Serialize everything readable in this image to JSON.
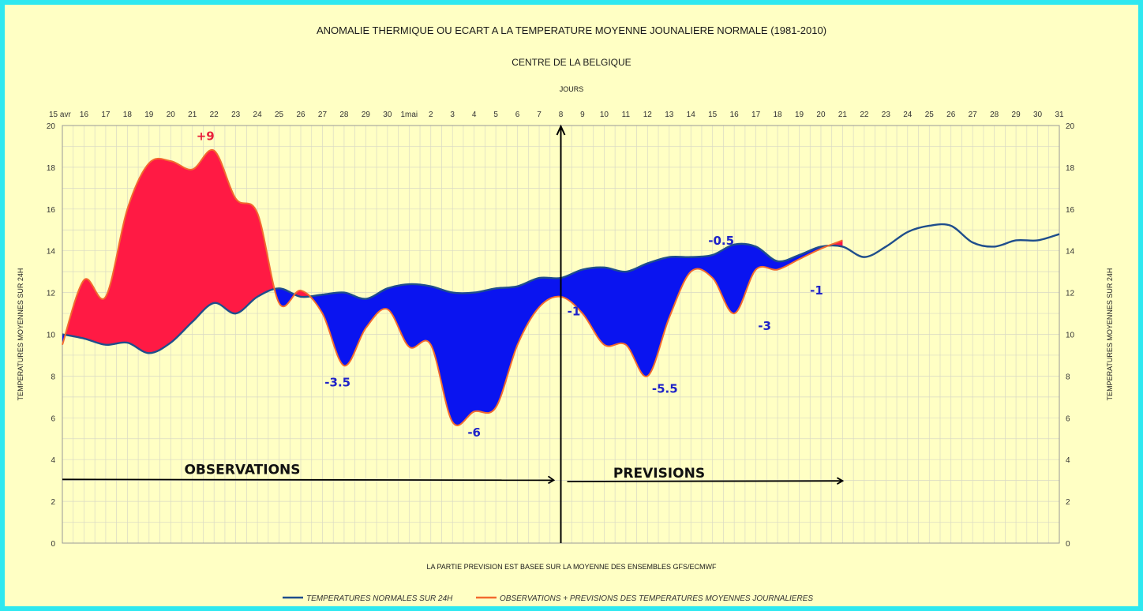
{
  "chart_data": {
    "type": "area",
    "title": "ANOMALIE THERMIQUE OU ECART A LA TEMPERATURE MOYENNE JOUNALIERE NORMALE (1981-2010)",
    "subtitle": "CENTRE DE LA BELGIQUE",
    "xlabel": "JOURS",
    "ylabel_left": "TEMPERATURES MOYENNES SUR 24H",
    "ylabel_right": "TEMPERATURES MOYENNES SUR 24H",
    "footnote": "LA PARTIE PREVISION EST BASEE SUR LA MOYENNE DES ENSEMBLES GFS/ECMWF",
    "ylim": [
      0,
      20
    ],
    "y_ticks": [
      "0",
      "2",
      "4",
      "6",
      "8",
      "10",
      "12",
      "14",
      "16",
      "18",
      "20"
    ],
    "x_ticks": [
      "15 avr",
      "16",
      "17",
      "18",
      "19",
      "20",
      "21",
      "22",
      "23",
      "24",
      "25",
      "26",
      "27",
      "28",
      "29",
      "30",
      "1mai",
      "2",
      "3",
      "4",
      "5",
      "6",
      "7",
      "8",
      "9",
      "10",
      "11",
      "12",
      "13",
      "14",
      "15",
      "16",
      "17",
      "18",
      "19",
      "20",
      "21",
      "22",
      "23",
      "24",
      "25",
      "26",
      "27",
      "28",
      "29",
      "30",
      "31"
    ],
    "grid": true,
    "legend_position": "bottom",
    "colors": {
      "normal_line": "#1f4e8c",
      "observed_line": "#f26a2e",
      "positive_fill": "#ff1a44",
      "negative_fill": "#0a14f0"
    },
    "series": [
      {
        "name": "TEMPERATURES NORMALES SUR 24H",
        "x": [
          0,
          1,
          2,
          3,
          4,
          5,
          6,
          7,
          8,
          9,
          10,
          11,
          12,
          13,
          14,
          15,
          16,
          17,
          18,
          19,
          20,
          21,
          22,
          23,
          24,
          25,
          26,
          27,
          28,
          29,
          30,
          31,
          32,
          33,
          34,
          35,
          36,
          37,
          38,
          39,
          40,
          41,
          42,
          43,
          44,
          45,
          46
        ],
        "values": [
          10.0,
          9.8,
          9.5,
          9.6,
          9.1,
          9.6,
          10.6,
          11.5,
          11.0,
          11.8,
          12.2,
          11.8,
          11.9,
          12.0,
          11.7,
          12.2,
          12.4,
          12.3,
          12.0,
          12.0,
          12.2,
          12.3,
          12.7,
          12.7,
          13.1,
          13.2,
          13.0,
          13.4,
          13.7,
          13.7,
          13.8,
          14.3,
          14.2,
          13.5,
          13.8,
          14.2,
          14.2,
          13.7,
          14.2,
          14.9,
          15.2,
          15.2,
          14.4,
          14.2,
          14.5,
          14.5,
          14.8
        ]
      },
      {
        "name": "OBSERVATIONS + PREVISIONS DES TEMPERATURES MOYENNES JOURNALIERES",
        "x": [
          0,
          1,
          2,
          3,
          4,
          5,
          6,
          7,
          8,
          9,
          10,
          11,
          12,
          13,
          14,
          15,
          16,
          17,
          18,
          19,
          20,
          21,
          22,
          23,
          24,
          25,
          26,
          27,
          28,
          29,
          30,
          31,
          32,
          33,
          34,
          35,
          36
        ],
        "values": [
          9.5,
          12.6,
          11.8,
          16.0,
          18.2,
          18.3,
          17.9,
          18.8,
          16.5,
          15.8,
          11.5,
          12.1,
          11.0,
          8.5,
          10.3,
          11.2,
          9.4,
          9.5,
          5.8,
          6.3,
          6.5,
          9.5,
          11.3,
          11.8,
          11.0,
          9.5,
          9.5,
          8.0,
          10.8,
          13.0,
          12.7,
          11.0,
          13.1,
          13.1,
          13.6,
          14.1,
          14.5
        ]
      }
    ],
    "annotations": [
      {
        "text": "+9",
        "x": 6.6,
        "y": 19.3,
        "color": "red"
      },
      {
        "text": "-3.5",
        "x": 12.7,
        "y": 7.5,
        "color": "blue"
      },
      {
        "text": "-6",
        "x": 19.0,
        "y": 5.1,
        "color": "blue"
      },
      {
        "text": "-1",
        "x": 23.6,
        "y": 10.9,
        "color": "blue"
      },
      {
        "text": "-5.5",
        "x": 27.8,
        "y": 7.2,
        "color": "blue"
      },
      {
        "text": "-0.5",
        "x": 30.4,
        "y": 14.3,
        "color": "blue"
      },
      {
        "text": "-3",
        "x": 32.4,
        "y": 10.2,
        "color": "blue"
      },
      {
        "text": "-1",
        "x": 34.8,
        "y": 11.9,
        "color": "blue"
      }
    ],
    "section_labels": {
      "observations": "OBSERVATIONS",
      "previsions": "PREVISIONS"
    }
  }
}
